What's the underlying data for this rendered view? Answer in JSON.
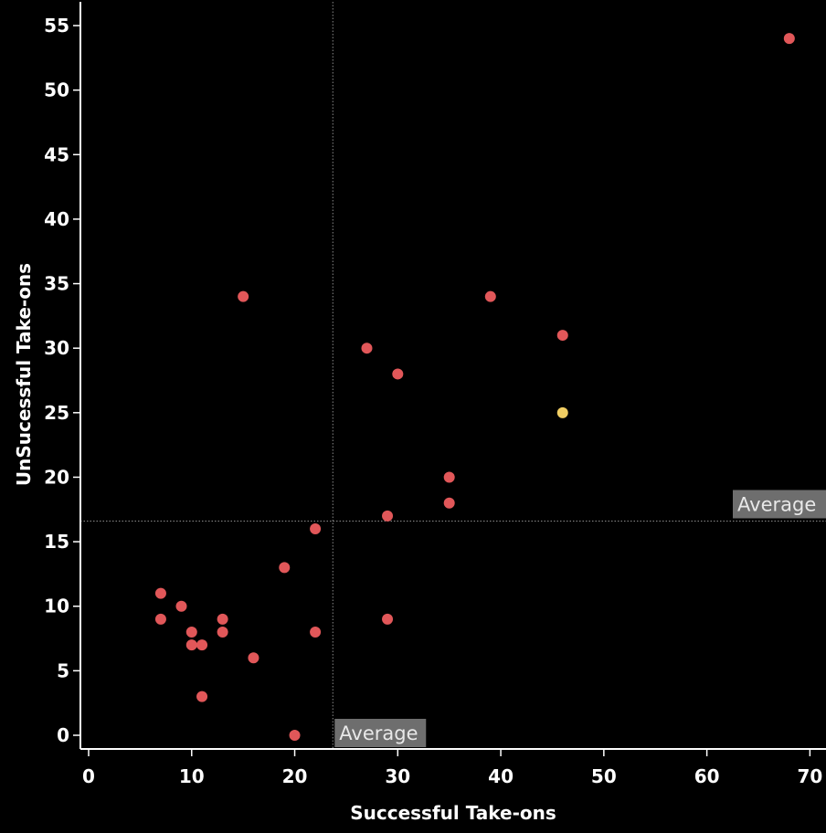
{
  "chart_data": {
    "type": "scatter",
    "xlabel": "Successful Take-ons",
    "ylabel": "UnSucessful Take-ons",
    "xlim": [
      -1,
      71
    ],
    "ylim": [
      -1,
      58
    ],
    "xticks": [
      0,
      10,
      20,
      30,
      40,
      50,
      60,
      70
    ],
    "yticks": [
      0,
      5,
      10,
      15,
      20,
      25,
      30,
      35,
      40,
      45,
      50,
      55
    ],
    "grid": false,
    "reference_lines": [
      {
        "axis": "x",
        "value": 23.7,
        "label": "Average"
      },
      {
        "axis": "y",
        "value": 16.6,
        "label": "Average"
      }
    ],
    "colors": {
      "point": "#e15759",
      "highlight": "#f1ce63",
      "background": "#000000",
      "axis": "#ffffff",
      "reference_line": "#8a8a8a",
      "ref_label_bg": "#6e6e6e"
    },
    "points": [
      {
        "x": 68,
        "y": 54
      },
      {
        "x": 15,
        "y": 34
      },
      {
        "x": 39,
        "y": 34
      },
      {
        "x": 46,
        "y": 31
      },
      {
        "x": 27,
        "y": 30
      },
      {
        "x": 30,
        "y": 28
      },
      {
        "x": 46,
        "y": 25,
        "highlight": true
      },
      {
        "x": 35,
        "y": 20
      },
      {
        "x": 35,
        "y": 18
      },
      {
        "x": 29,
        "y": 17
      },
      {
        "x": 22,
        "y": 16
      },
      {
        "x": 19,
        "y": 13
      },
      {
        "x": 7,
        "y": 11
      },
      {
        "x": 9,
        "y": 10
      },
      {
        "x": 7,
        "y": 9
      },
      {
        "x": 13,
        "y": 9
      },
      {
        "x": 29,
        "y": 9
      },
      {
        "x": 10,
        "y": 8
      },
      {
        "x": 13,
        "y": 8
      },
      {
        "x": 22,
        "y": 8
      },
      {
        "x": 10,
        "y": 7
      },
      {
        "x": 11,
        "y": 7
      },
      {
        "x": 16,
        "y": 6
      },
      {
        "x": 11,
        "y": 3
      },
      {
        "x": 20,
        "y": 0
      }
    ]
  }
}
